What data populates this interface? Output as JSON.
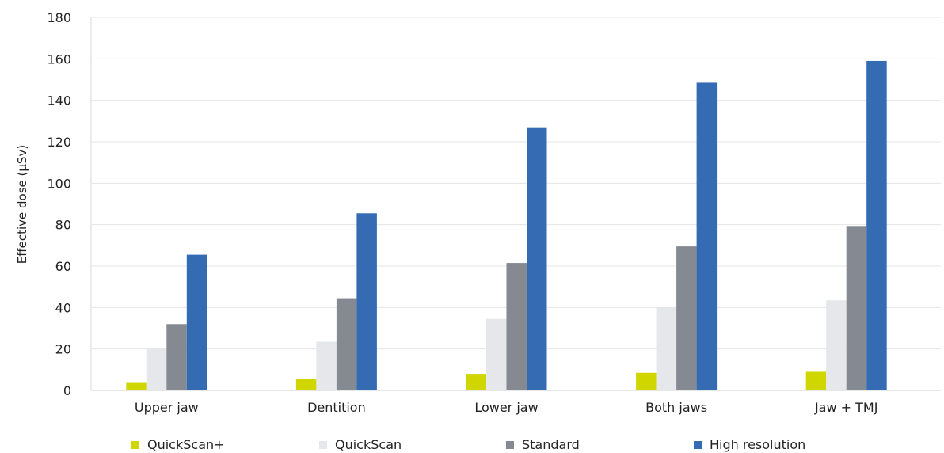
{
  "chart_data": {
    "type": "bar",
    "categories": [
      "Upper jaw",
      "Dentition",
      "Lower jaw",
      "Both jaws",
      "Jaw + TMJ"
    ],
    "series": [
      {
        "name": "QuickScan+",
        "color": "#cfd600",
        "values": [
          4,
          5.5,
          8,
          8.5,
          9
        ]
      },
      {
        "name": "QuickScan",
        "color": "#e6e7ea",
        "values": [
          20,
          23.5,
          34.5,
          40,
          43.5
        ]
      },
      {
        "name": "Standard",
        "color": "#858991",
        "values": [
          32,
          44.5,
          61.5,
          69.5,
          79
        ]
      },
      {
        "name": "High resolution",
        "color": "#346bb3",
        "values": [
          65.5,
          85.5,
          127,
          148.5,
          159
        ]
      }
    ],
    "ylabel": "Effective dose (μSv)",
    "ylim": [
      0,
      180
    ],
    "yticks": [
      "0",
      "20",
      "40",
      "60",
      "80",
      "100",
      "120",
      "140",
      "160",
      "180"
    ],
    "grid": true,
    "legend_position": "bottom"
  }
}
